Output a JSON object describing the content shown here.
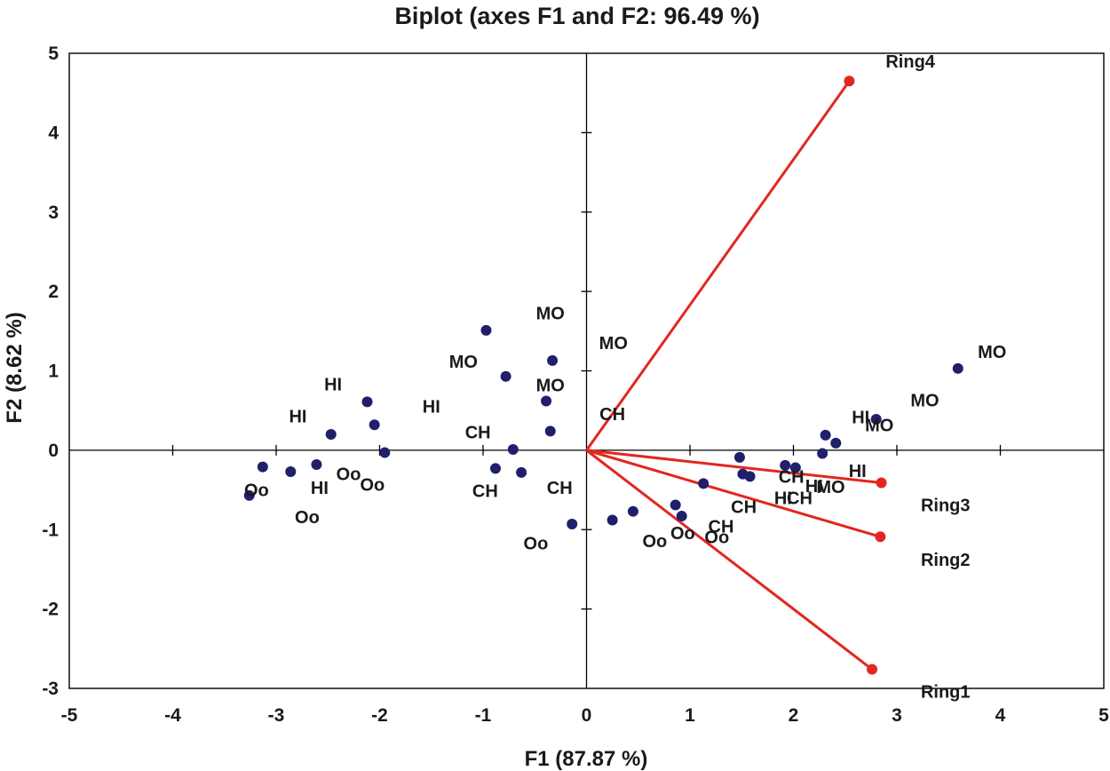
{
  "chart_data": {
    "type": "scatter",
    "title": "Biplot (axes F1 and F2: 96.49 %)",
    "xlabel": "F1 (87.87 %)",
    "ylabel": "F2 (8.62 %)",
    "xlim": [
      -5,
      5
    ],
    "ylim": [
      -3,
      5
    ],
    "xticks": [
      "-5",
      "-4",
      "-3",
      "-2",
      "-1",
      "0",
      "1",
      "2",
      "3",
      "4",
      "5"
    ],
    "yticks": [
      "-3",
      "-2",
      "-1",
      "0",
      "1",
      "2",
      "3",
      "4",
      "5"
    ],
    "colors": {
      "observations": "#1f1f6b",
      "variables": "#e3261f",
      "axes": "#000000"
    },
    "observations": [
      {
        "x": 3.59,
        "y": 1.03
      },
      {
        "x": 2.8,
        "y": 0.39
      },
      {
        "x": 2.41,
        "y": 0.09
      },
      {
        "x": 2.31,
        "y": 0.19
      },
      {
        "x": 2.28,
        "y": -0.04
      },
      {
        "x": 2.02,
        "y": -0.22
      },
      {
        "x": 1.92,
        "y": -0.19
      },
      {
        "x": 1.58,
        "y": -0.33
      },
      {
        "x": 1.51,
        "y": -0.3
      },
      {
        "x": 1.48,
        "y": -0.09
      },
      {
        "x": 1.13,
        "y": -0.42
      },
      {
        "x": 0.92,
        "y": -0.83
      },
      {
        "x": 0.86,
        "y": -0.69
      },
      {
        "x": 0.45,
        "y": -0.77
      },
      {
        "x": 0.25,
        "y": -0.88
      },
      {
        "x": -0.14,
        "y": -0.93
      },
      {
        "x": -0.35,
        "y": 0.24
      },
      {
        "x": -0.39,
        "y": 0.62
      },
      {
        "x": -0.33,
        "y": 1.13
      },
      {
        "x": -0.97,
        "y": 1.51
      },
      {
        "x": -0.78,
        "y": 0.93
      },
      {
        "x": -0.71,
        "y": 0.01
      },
      {
        "x": -0.88,
        "y": -0.23
      },
      {
        "x": -0.63,
        "y": -0.28
      },
      {
        "x": -1.95,
        "y": -0.03
      },
      {
        "x": -2.05,
        "y": 0.32
      },
      {
        "x": -2.12,
        "y": 0.61
      },
      {
        "x": -2.47,
        "y": 0.2
      },
      {
        "x": -2.61,
        "y": -0.18
      },
      {
        "x": -2.86,
        "y": -0.27
      },
      {
        "x": -3.13,
        "y": -0.21
      },
      {
        "x": -3.26,
        "y": -0.57
      }
    ],
    "annotations": [
      {
        "text": "MO",
        "x": 3.92,
        "y": 1.24
      },
      {
        "text": "MO",
        "x": 3.27,
        "y": 0.63
      },
      {
        "text": "MO",
        "x": 2.83,
        "y": 0.32
      },
      {
        "text": "HI",
        "x": 2.65,
        "y": 0.42
      },
      {
        "text": "HI",
        "x": 2.62,
        "y": -0.26
      },
      {
        "text": "MO",
        "x": 2.36,
        "y": -0.46
      },
      {
        "text": "HI",
        "x": 2.2,
        "y": -0.45
      },
      {
        "text": "CH",
        "x": 1.98,
        "y": -0.33
      },
      {
        "text": "HI",
        "x": 1.9,
        "y": -0.6
      },
      {
        "text": "CH",
        "x": 2.06,
        "y": -0.6
      },
      {
        "text": "CH",
        "x": 1.52,
        "y": -0.71
      },
      {
        "text": "CH",
        "x": 1.3,
        "y": -0.96
      },
      {
        "text": "Oo",
        "x": 1.26,
        "y": -1.09
      },
      {
        "text": "Oo",
        "x": 0.93,
        "y": -1.04
      },
      {
        "text": "Oo",
        "x": 0.66,
        "y": -1.14
      },
      {
        "text": "Oo",
        "x": -0.49,
        "y": -1.17
      },
      {
        "text": "CH",
        "x": 0.25,
        "y": 0.46
      },
      {
        "text": "MO",
        "x": -0.35,
        "y": 0.82
      },
      {
        "text": "MO",
        "x": 0.26,
        "y": 1.35
      },
      {
        "text": "MO",
        "x": -0.35,
        "y": 1.73
      },
      {
        "text": "MO",
        "x": -1.19,
        "y": 1.12
      },
      {
        "text": "CH",
        "x": -1.05,
        "y": 0.23
      },
      {
        "text": "CH",
        "x": -0.98,
        "y": -0.51
      },
      {
        "text": "CH",
        "x": -0.26,
        "y": -0.47
      },
      {
        "text": "Oo",
        "x": -2.07,
        "y": -0.43
      },
      {
        "text": "HI",
        "x": -1.5,
        "y": 0.55
      },
      {
        "text": "HI",
        "x": -2.45,
        "y": 0.83
      },
      {
        "text": "HI",
        "x": -2.79,
        "y": 0.43
      },
      {
        "text": "Oo",
        "x": -2.3,
        "y": -0.3
      },
      {
        "text": "HI",
        "x": -2.58,
        "y": -0.47
      },
      {
        "text": "Oo",
        "x": -3.19,
        "y": -0.5
      },
      {
        "text": "Oo",
        "x": -2.7,
        "y": -0.84
      }
    ],
    "variables": [
      {
        "name": "Ring4",
        "x": 2.54,
        "y": 4.65,
        "label_x": 3.13,
        "label_y": 4.9
      },
      {
        "name": "Ring3",
        "x": 2.85,
        "y": -0.41,
        "label_x": 3.47,
        "label_y": -0.69
      },
      {
        "name": "Ring2",
        "x": 2.84,
        "y": -1.09,
        "label_x": 3.47,
        "label_y": -1.38
      },
      {
        "name": "Ring1",
        "x": 2.76,
        "y": -2.76,
        "label_x": 3.47,
        "label_y": -3.04
      }
    ]
  }
}
